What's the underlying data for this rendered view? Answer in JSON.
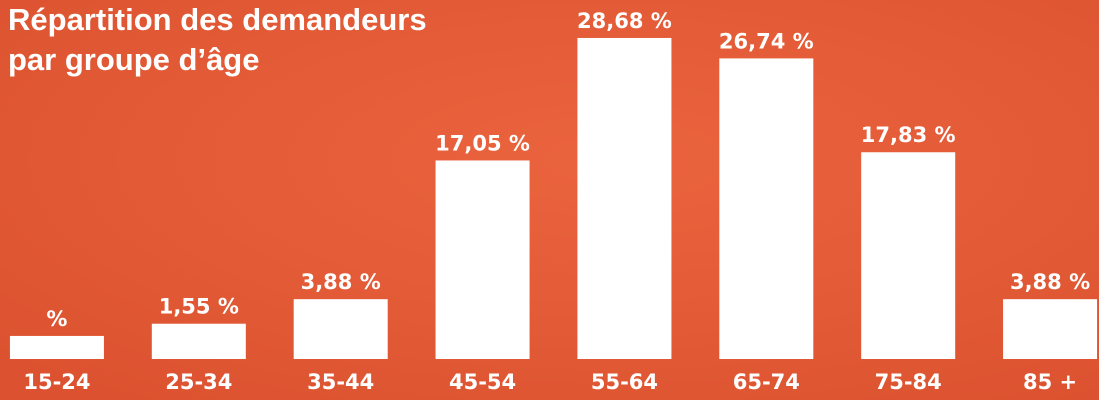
{
  "chart_data": {
    "type": "bar",
    "title": [
      "Répartition des demandeurs",
      "par groupe d’âge"
    ],
    "categories": [
      "15-24",
      "25-34",
      "35-44",
      "45-54",
      "55-64",
      "65-74",
      "75-84",
      "85 +"
    ],
    "values": [
      0.39,
      1.55,
      3.88,
      17.05,
      28.68,
      26.74,
      17.83,
      3.88
    ],
    "value_labels": [
      "%",
      "1,55 %",
      "3,88 %",
      "17,05 %",
      "28,68 %",
      "26,74 %",
      "17,83 %",
      "3,88 %"
    ],
    "color": "#ffffff",
    "ylim": [
      -1.8,
      32
    ]
  }
}
